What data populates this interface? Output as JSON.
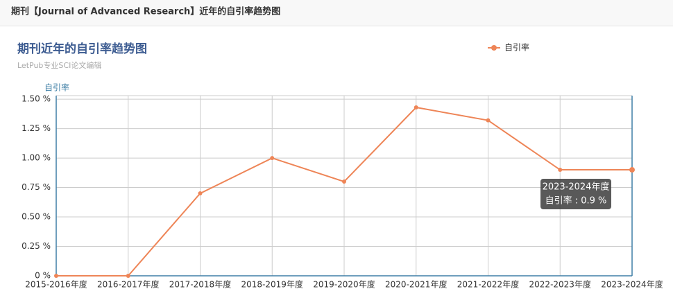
{
  "header": {
    "title": "期刊【Journal of Advanced Research】近年的自引率趋势图"
  },
  "chart_data": {
    "type": "line",
    "title": "期刊近年的自引率趋势图",
    "subtitle": "LetPub专业SCI论文编辑",
    "y_label": "自引率",
    "categories": [
      "2015-2016年度",
      "2016-2017年度",
      "2017-2018年度",
      "2018-2019年度",
      "2019-2020年度",
      "2020-2021年度",
      "2021-2022年度",
      "2022-2023年度",
      "2023-2024年度"
    ],
    "series": [
      {
        "name": "自引率",
        "color": "#ee8557",
        "values": [
          0,
          0,
          0.7,
          1.0,
          0.8,
          1.43,
          1.32,
          0.9,
          0.9
        ]
      }
    ],
    "ylim": [
      0,
      1.53
    ],
    "yticks": [
      {
        "value": 0,
        "label": "0 %"
      },
      {
        "value": 0.25,
        "label": "0.25 %"
      },
      {
        "value": 0.5,
        "label": "0.50 %"
      },
      {
        "value": 0.75,
        "label": "0.75 %"
      },
      {
        "value": 1.0,
        "label": "1.00 %"
      },
      {
        "value": 1.25,
        "label": "1.25 %"
      },
      {
        "value": 1.5,
        "label": "1.50 %"
      }
    ],
    "grid": true,
    "legend": "top-right",
    "tooltip_label": "自引率 : 0.9 %"
  }
}
